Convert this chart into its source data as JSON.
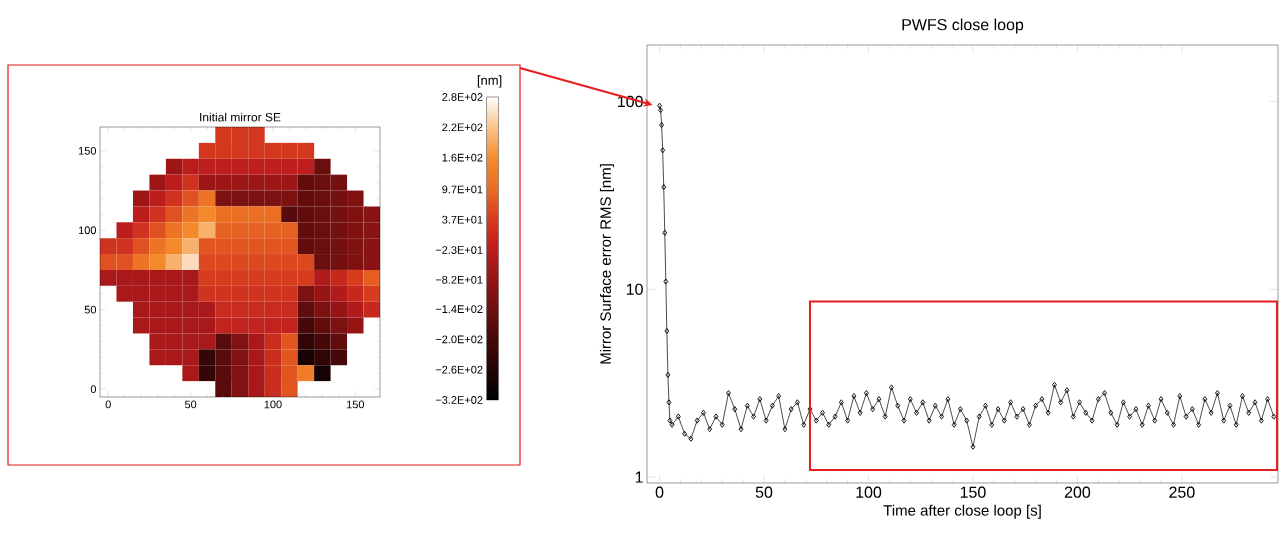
{
  "chart_data": [
    {
      "type": "heatmap",
      "title": "Initial mirror SE",
      "categories": [
        "0",
        null,
        null,
        null,
        null,
        "50",
        null,
        null,
        null,
        null,
        "100",
        null,
        null,
        null,
        null,
        "150",
        null
      ],
      "y_categories": [
        null,
        "150",
        null,
        null,
        null,
        null,
        "100",
        null,
        null,
        null,
        null,
        "50",
        null,
        null,
        null,
        null,
        "0"
      ],
      "cells": [
        [
          null,
          null,
          null,
          null,
          null,
          null,
          null,
          30,
          30,
          30,
          null,
          null,
          null,
          null,
          null,
          null,
          null
        ],
        [
          null,
          null,
          null,
          null,
          null,
          null,
          30,
          30,
          30,
          30,
          30,
          30,
          30,
          null,
          null,
          null,
          null
        ],
        [
          null,
          null,
          null,
          null,
          -70,
          -25,
          -20,
          -20,
          -20,
          -20,
          -20,
          -20,
          -20,
          -145,
          null,
          null,
          null
        ],
        [
          null,
          null,
          null,
          -70,
          -25,
          20,
          -70,
          -70,
          -70,
          -70,
          -70,
          -70,
          -160,
          -145,
          -130,
          null,
          null
        ],
        [
          null,
          null,
          -70,
          -25,
          20,
          65,
          110,
          -120,
          -120,
          -120,
          -120,
          -120,
          -160,
          -145,
          -130,
          -115,
          null
        ],
        [
          null,
          null,
          -25,
          20,
          65,
          110,
          155,
          102,
          102,
          102,
          102,
          -175,
          -160,
          -145,
          -130,
          -115,
          -100
        ],
        [
          null,
          -25,
          20,
          65,
          110,
          155,
          200,
          86,
          86,
          86,
          86,
          86,
          -160,
          -145,
          -130,
          -115,
          -100
        ],
        [
          20,
          20,
          65,
          110,
          155,
          200,
          70,
          70,
          70,
          70,
          70,
          70,
          -160,
          -145,
          -130,
          -115,
          -100
        ],
        [
          65,
          65,
          110,
          155,
          200,
          245,
          54,
          54,
          54,
          54,
          54,
          54,
          54,
          -145,
          -130,
          -115,
          -100
        ],
        [
          -50,
          -50,
          -50,
          -50,
          -50,
          -50,
          38,
          38,
          38,
          38,
          38,
          38,
          38,
          -40,
          0,
          40,
          80
        ],
        [
          null,
          -50,
          -50,
          -50,
          -50,
          -50,
          22,
          22,
          22,
          22,
          22,
          22,
          -120,
          -80,
          -40,
          0,
          40
        ],
        [
          null,
          null,
          -50,
          -50,
          -50,
          -50,
          -50,
          6,
          6,
          6,
          6,
          6,
          -160,
          -120,
          -80,
          -40,
          0
        ],
        [
          null,
          null,
          -50,
          -50,
          -50,
          -50,
          -50,
          -10,
          -10,
          -10,
          -10,
          -10,
          -200,
          -160,
          -120,
          -80,
          null
        ],
        [
          null,
          null,
          null,
          -50,
          -50,
          -50,
          -50,
          -170,
          -110,
          -50,
          10,
          70,
          -240,
          -200,
          -160,
          null,
          null
        ],
        [
          null,
          null,
          null,
          -50,
          -50,
          -50,
          -230,
          -170,
          -110,
          -50,
          10,
          70,
          -280,
          -240,
          -200,
          null,
          null
        ],
        [
          null,
          null,
          null,
          null,
          null,
          -50,
          -230,
          -170,
          -110,
          -50,
          10,
          70,
          130,
          -280,
          null,
          null,
          null
        ],
        [
          null,
          null,
          null,
          null,
          null,
          null,
          null,
          -170,
          -110,
          -50,
          10,
          70,
          null,
          null,
          null,
          null,
          null
        ]
      ],
      "clim": [
        -320,
        280
      ],
      "cticks": [
        {
          "value": 280,
          "label": "2.8E+02"
        },
        {
          "value": 220,
          "label": "2.2E+02"
        },
        {
          "value": 160,
          "label": "1.6E+02"
        },
        {
          "value": 97,
          "label": "9.7E+01"
        },
        {
          "value": 37,
          "label": "3.7E+01"
        },
        {
          "value": -23,
          "label": "−2.3E+01"
        },
        {
          "value": -82,
          "label": "−8.2E+01"
        },
        {
          "value": -140,
          "label": "−1.4E+02"
        },
        {
          "value": -200,
          "label": "−2.0E+02"
        },
        {
          "value": -260,
          "label": "−2.6E+02"
        },
        {
          "value": -320,
          "label": "−3.2E+02"
        }
      ],
      "clabel": "[nm]"
    },
    {
      "type": "line",
      "title": "PWFS close loop",
      "xlabel": "Time after close loop [s]",
      "ylabel": "Mirror Surface error RMS [nm]",
      "x": [
        0,
        0.5,
        1,
        1.5,
        2,
        2.5,
        3,
        3.5,
        4,
        4.5,
        5,
        6,
        9,
        12,
        15,
        18,
        21,
        24,
        27,
        30,
        33,
        36,
        39,
        42,
        45,
        48,
        51,
        54,
        57,
        60,
        63,
        66,
        69,
        72,
        75,
        78,
        81,
        84,
        87,
        90,
        93,
        96,
        99,
        102,
        105,
        108,
        111,
        114,
        117,
        120,
        123,
        126,
        129,
        132,
        135,
        138,
        141,
        144,
        147,
        150,
        153,
        156,
        159,
        162,
        165,
        168,
        171,
        174,
        177,
        180,
        183,
        186,
        189,
        192,
        195,
        198,
        201,
        204,
        207,
        210,
        213,
        216,
        219,
        222,
        225,
        228,
        231,
        234,
        237,
        240,
        243,
        246,
        249,
        252,
        255,
        258,
        261,
        264,
        267,
        270,
        273,
        276,
        279,
        282,
        285,
        288,
        291,
        294
      ],
      "series": [
        {
          "color": "#000000",
          "values": [
            95,
            90,
            75,
            55,
            35,
            20,
            11,
            6,
            3.5,
            2.5,
            2.0,
            1.9,
            2.1,
            1.7,
            1.6,
            2.0,
            2.2,
            1.8,
            2.1,
            1.9,
            2.8,
            2.3,
            1.8,
            2.4,
            2.1,
            2.6,
            2.0,
            2.4,
            2.7,
            1.8,
            2.3,
            2.5,
            1.9,
            2.3,
            2.0,
            2.2,
            1.9,
            2.1,
            2.5,
            2.0,
            2.7,
            2.2,
            2.8,
            2.3,
            2.6,
            2.1,
            3.0,
            2.4,
            2.0,
            2.6,
            2.2,
            2.5,
            2.0,
            2.4,
            2.1,
            2.6,
            1.9,
            2.3,
            2.0,
            1.45,
            2.1,
            2.4,
            1.9,
            2.3,
            2.0,
            2.5,
            2.1,
            2.3,
            1.9,
            2.4,
            2.6,
            2.2,
            3.1,
            2.5,
            2.9,
            2.1,
            2.5,
            2.2,
            2.0,
            2.6,
            2.8,
            2.2,
            1.9,
            2.5,
            2.1,
            2.3,
            1.9,
            2.4,
            2.0,
            2.6,
            2.2,
            1.9,
            2.7,
            2.1,
            2.3,
            1.9,
            2.6,
            2.2,
            2.8,
            2.0,
            2.4,
            1.9,
            2.7,
            2.2,
            2.5,
            2.0,
            2.6,
            2.1
          ]
        }
      ],
      "marker": "diamond",
      "line_style": "solid",
      "log": "y",
      "xlim": [
        -6,
        296
      ],
      "ylim": [
        0.93,
        200
      ],
      "xticks": [
        0,
        50,
        100,
        150,
        200,
        250
      ],
      "yticks": [
        1,
        10,
        100
      ]
    }
  ]
}
